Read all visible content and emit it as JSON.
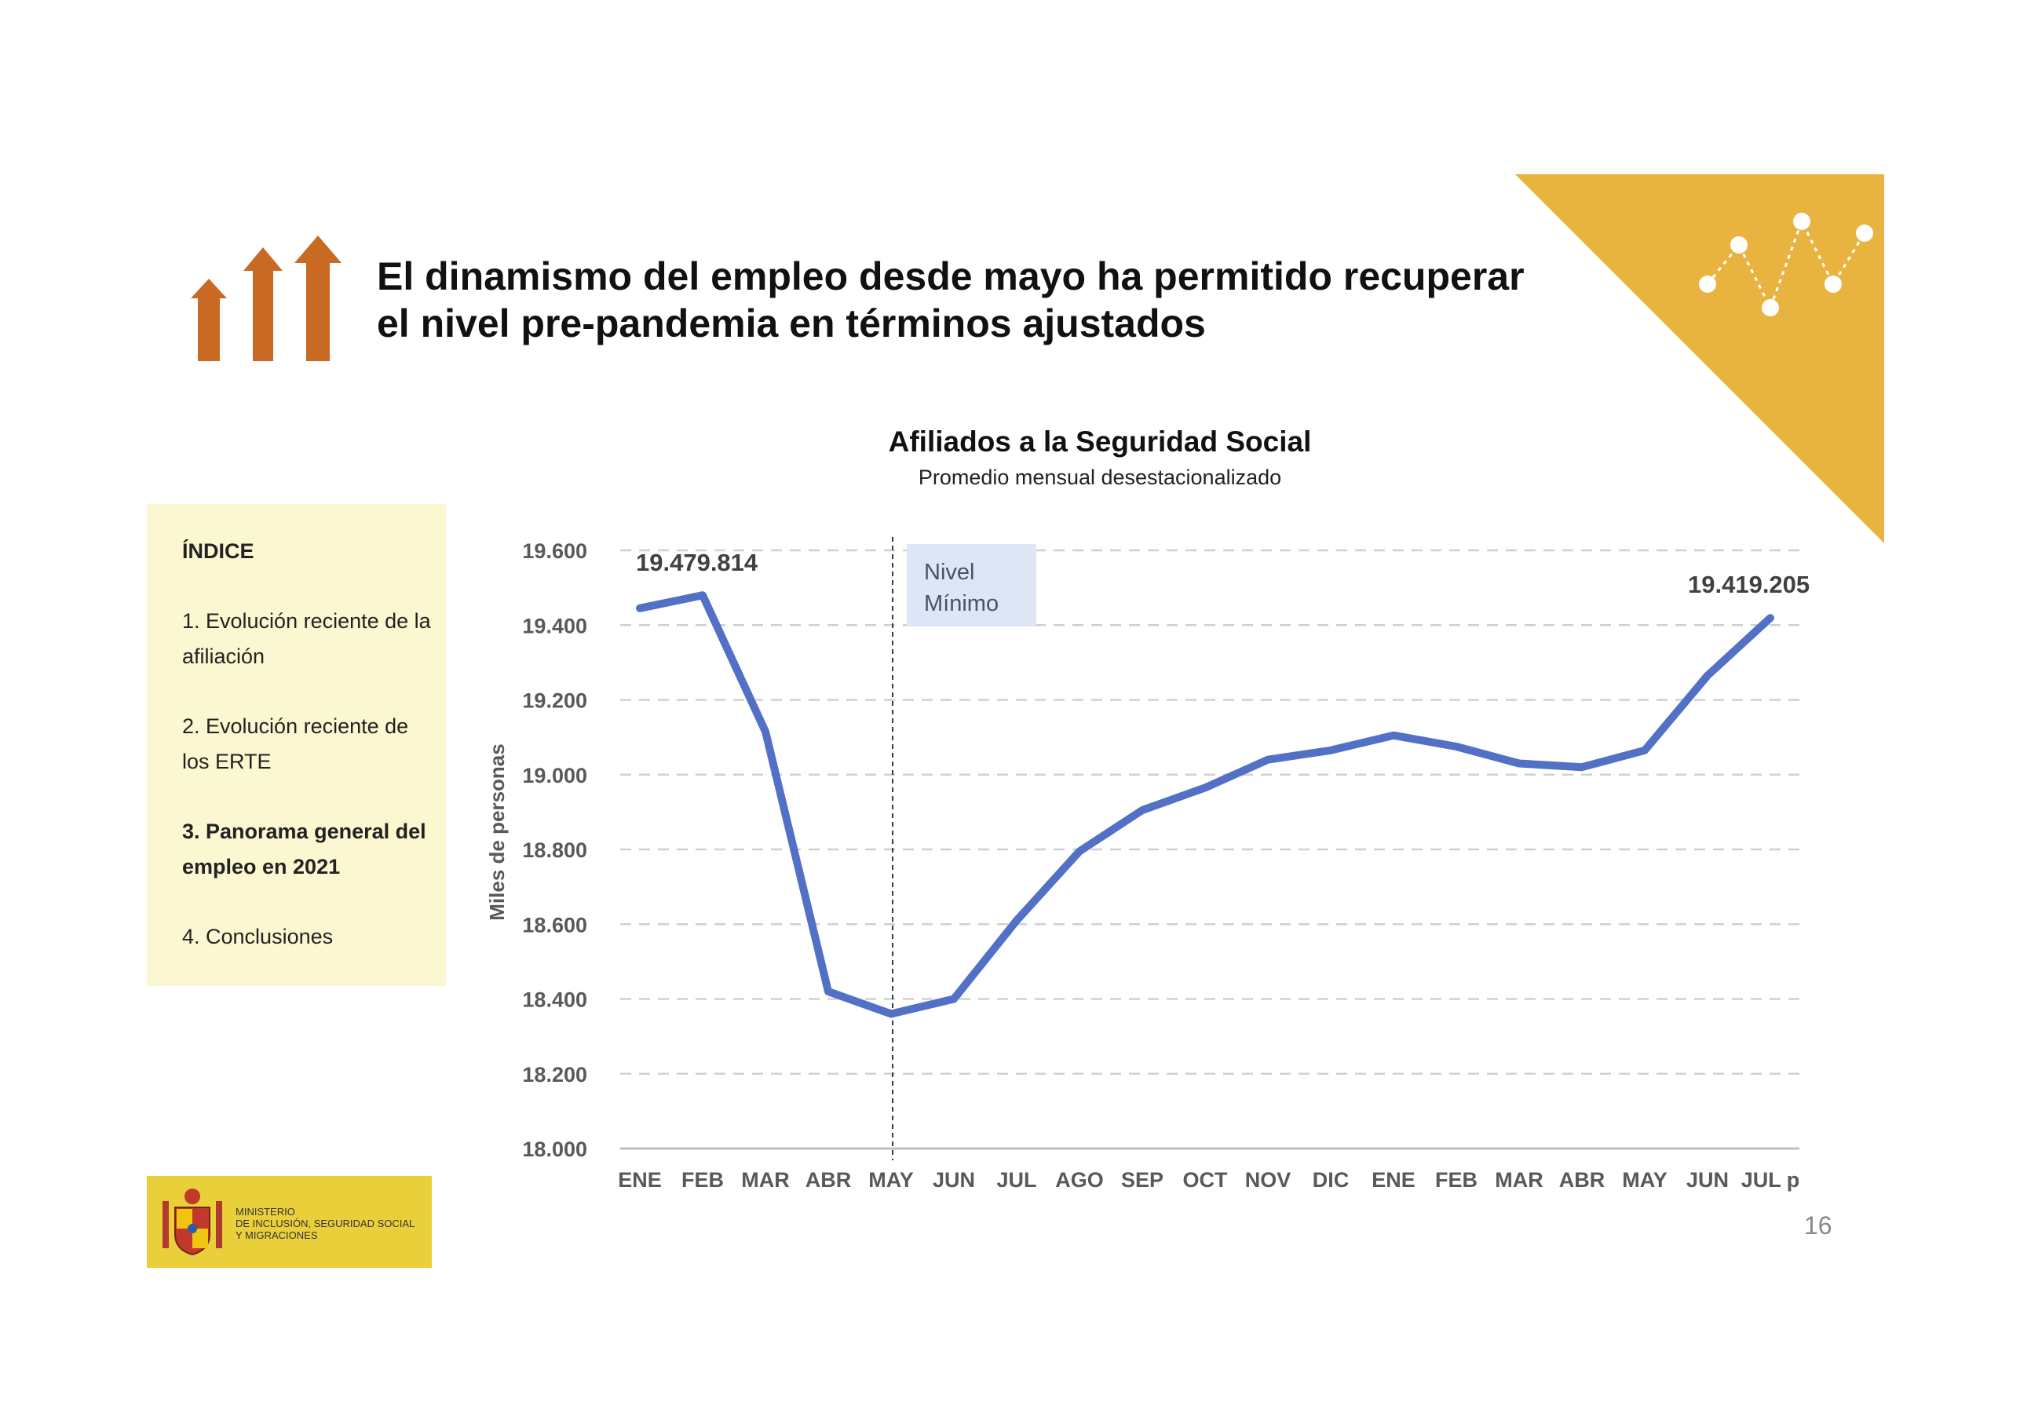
{
  "slide": {
    "title": "El dinamismo del empleo desde mayo ha permitido recuperar el nivel pre-pandemia en términos ajustados",
    "page_number": "16"
  },
  "sidebar": {
    "heading": "ÍNDICE",
    "items": [
      {
        "label": "1. Evolución reciente de la afiliación",
        "active": false
      },
      {
        "label": "2. Evolución reciente de los ERTE",
        "active": false
      },
      {
        "label": "3. Panorama general del empleo en 2021",
        "active": true
      },
      {
        "label": "4. Conclusiones",
        "active": false
      }
    ]
  },
  "logo": {
    "lines": [
      "MINISTERIO",
      "DE INCLUSIÓN, SEGURIDAD SOCIAL",
      "Y MIGRACIONES"
    ]
  },
  "colors": {
    "line": "#5271c6",
    "arrows": "#c96a24",
    "corner": "#e9b340",
    "sidebar_bg": "#fbf7d0",
    "logo_bg": "#e9cf3a",
    "annotation_bg": "#dde6f4"
  },
  "chart_data": {
    "type": "line",
    "title": "Afiliados a la Seguridad Social",
    "subtitle": "Promedio mensual desestacionalizado",
    "ylabel": "Miles de personas",
    "xlabel": "",
    "categories": [
      "ENE",
      "FEB",
      "MAR",
      "ABR",
      "MAY",
      "JUN",
      "JUL",
      "AGO",
      "SEP",
      "OCT",
      "NOV",
      "DIC",
      "ENE",
      "FEB",
      "MAR",
      "ABR",
      "MAY",
      "JUN",
      "JUL p"
    ],
    "values": [
      19445,
      19479.814,
      19115,
      18420,
      18360,
      18400,
      18610,
      18795,
      18905,
      18965,
      19040,
      19065,
      19105,
      19075,
      19030,
      19020,
      19065,
      19265,
      19419.205
    ],
    "ylim": [
      18000,
      19600
    ],
    "yticks": [
      "18.000",
      "18.200",
      "18.400",
      "18.600",
      "18.800",
      "19.000",
      "19.200",
      "19.400",
      "19.600"
    ],
    "ytick_values": [
      18000,
      18200,
      18400,
      18600,
      18800,
      19000,
      19200,
      19400,
      19600
    ],
    "grid": true,
    "annotations": {
      "start_label": "19.479.814",
      "end_label": "19.419.205",
      "min_box_line1": "Nivel",
      "min_box_line2": "Mínimo",
      "min_index": 4
    }
  }
}
